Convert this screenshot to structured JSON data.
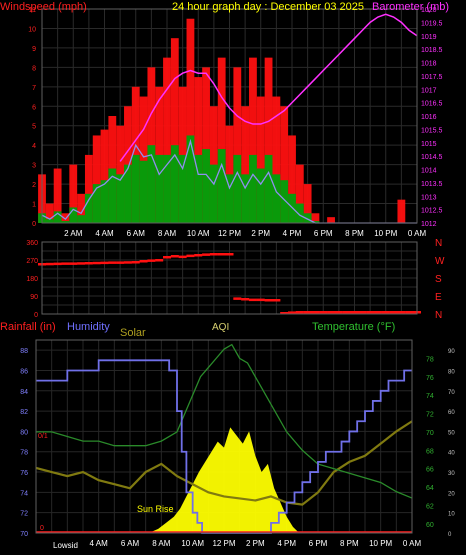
{
  "chart_data": [
    {
      "type": "line",
      "panel": "wind-barometer",
      "title": "24 hour graph day : December 03 2025",
      "ylabel": "Windspeed (mph)",
      "ylabel_right": "Barometer (mb)",
      "x_ticks": [
        "2 AM",
        "4 AM",
        "6 AM",
        "8 AM",
        "10 AM",
        "12 PM",
        "2 PM",
        "4 PM",
        "6 PM",
        "8 PM",
        "10 PM",
        "0 AM"
      ],
      "ylim": [
        0,
        11
      ],
      "y_ticks": [
        0,
        1,
        2,
        3,
        4,
        5,
        6,
        7,
        8,
        9,
        10,
        11
      ],
      "y2lim": [
        1012,
        1020
      ],
      "y2_ticks": [
        "1012",
        "1012.5",
        "1013",
        "1013.5",
        "1014",
        "1014.5",
        "1015",
        "1015.5",
        "1016",
        "1016.5",
        "1017",
        "1017.5",
        "1018",
        "1018.5",
        "1019",
        "1019.5",
        "1020"
      ],
      "grid": true,
      "series": [
        {
          "name": "Barometer (mb)",
          "axis": "right",
          "color": "#ff30ff",
          "x": [
            5,
            5.5,
            6,
            6.5,
            7,
            7.5,
            8,
            8.5,
            9,
            9.5,
            10,
            10.5,
            11,
            11.5,
            12,
            12.5,
            13,
            13.5,
            14,
            14.5,
            15,
            15.5,
            16,
            16.5,
            17,
            17.5,
            18,
            18.5,
            19,
            19.5,
            20,
            20.5,
            21,
            21.5,
            22,
            22.5,
            23,
            23.5,
            24
          ],
          "values": [
            1014.3,
            1014.7,
            1015.1,
            1015.5,
            1016.1,
            1016.6,
            1017.0,
            1017.4,
            1017.6,
            1017.7,
            1017.6,
            1017.6,
            1017.2,
            1016.7,
            1016.3,
            1016.0,
            1015.8,
            1015.7,
            1015.7,
            1015.8,
            1016.0,
            1016.2,
            1016.5,
            1016.8,
            1017.1,
            1017.4,
            1017.7,
            1018.0,
            1018.3,
            1018.6,
            1018.9,
            1019.2,
            1019.5,
            1019.7,
            1019.8,
            1019.7,
            1019.5,
            1019.2,
            1019.0
          ]
        },
        {
          "name": "Wind gust",
          "color": "#ff1010",
          "x": [
            0,
            0.5,
            1,
            1.5,
            2,
            2.5,
            3,
            3.5,
            4,
            4.5,
            5,
            5.5,
            6,
            6.5,
            7,
            7.5,
            8,
            8.5,
            9,
            9.5,
            10,
            10.5,
            11,
            11.5,
            12,
            12.5,
            13,
            13.5,
            14,
            14.5,
            15,
            15.5,
            16,
            16.5,
            17,
            17.5,
            18,
            18.5,
            19,
            19.5,
            20,
            20.5,
            21,
            21.5,
            22,
            22.5,
            23,
            23.5,
            24
          ],
          "values": [
            2.5,
            1,
            2.8,
            0.5,
            3,
            1.5,
            3.5,
            4.5,
            4.8,
            5.5,
            5,
            6,
            7,
            6.5,
            8,
            7,
            8.5,
            9.5,
            7,
            10.5,
            7.5,
            8,
            6,
            8.5,
            5,
            8,
            6,
            8.5,
            6.5,
            8.5,
            6.5,
            6,
            4.5,
            3,
            2,
            0.5,
            0,
            0.3,
            0,
            0,
            0,
            0,
            0,
            0,
            0,
            0,
            1.2,
            0,
            0
          ]
        },
        {
          "name": "Wind speed",
          "color": "#0a9a0a",
          "x": [
            0,
            0.5,
            1,
            1.5,
            2,
            2.5,
            3,
            3.5,
            4,
            4.5,
            5,
            5.5,
            6,
            6.5,
            7,
            7.5,
            8,
            8.5,
            9,
            9.5,
            10,
            10.5,
            11,
            11.5,
            12,
            12.5,
            13,
            13.5,
            14,
            14.5,
            15,
            15.5,
            16,
            16.5,
            17,
            17.5,
            18,
            18.5,
            19,
            19.5,
            20,
            20.5,
            21,
            21.5,
            22,
            22.5,
            23,
            23.5,
            24
          ],
          "values": [
            0.5,
            0.2,
            0.6,
            0.1,
            0.8,
            0.4,
            1.5,
            2,
            2.2,
            2.8,
            2.5,
            3,
            3.5,
            3.2,
            4,
            3.5,
            3.5,
            4,
            3.5,
            4.5,
            3.5,
            3.8,
            3,
            3.8,
            2.5,
            3.5,
            2.5,
            3.5,
            2.8,
            3.5,
            2.5,
            2.2,
            1.5,
            1,
            0.5,
            0.1,
            0,
            0,
            0,
            0,
            0,
            0,
            0,
            0,
            0,
            0,
            0,
            0,
            0
          ]
        },
        {
          "name": "Wind average",
          "color": "#8f8ff0",
          "x": [
            0,
            0.5,
            1,
            1.5,
            2,
            2.5,
            3,
            3.5,
            4,
            4.5,
            5,
            5.5,
            6,
            6.5,
            7,
            7.5,
            8,
            8.5,
            9,
            9.5,
            10,
            10.5,
            11,
            11.5,
            12,
            12.5,
            13,
            13.5,
            14,
            14.5,
            15,
            15.5,
            16,
            16.5,
            17,
            17.5,
            18,
            18.5,
            19,
            19.5,
            20,
            20.5,
            21,
            21.5,
            22,
            22.5,
            23,
            23.5,
            24
          ],
          "values": [
            0.4,
            0.2,
            0.5,
            0.2,
            0.7,
            0.5,
            1.2,
            1.8,
            2,
            2.4,
            2.2,
            2.8,
            4,
            3.4,
            3.5,
            2.5,
            3,
            3.5,
            2.8,
            4.2,
            2.5,
            2.5,
            2,
            3,
            1.8,
            2.6,
            1.8,
            2.5,
            2,
            2.6,
            1.6,
            1.2,
            0.8,
            0.4,
            0.2,
            0,
            0,
            0,
            0,
            0,
            0,
            0,
            0,
            0,
            0,
            0,
            0,
            0,
            0
          ]
        }
      ]
    },
    {
      "type": "scatter",
      "panel": "wind-direction",
      "ylim": [
        0,
        360
      ],
      "y_ticks": [
        "0",
        "45",
        "90",
        "135",
        "180",
        "225",
        "270",
        "315",
        "360"
      ],
      "compass_labels": [
        "N",
        "W",
        "S",
        "E",
        "N"
      ],
      "grid": true,
      "series": [
        {
          "name": "Wind direction",
          "color": "#ff1010",
          "x": [
            0,
            0.5,
            1,
            1.5,
            2,
            2.5,
            3,
            3.5,
            4,
            4.5,
            5,
            5.5,
            6,
            6.5,
            7,
            7.5,
            8,
            8.5,
            9,
            9.5,
            10,
            10.5,
            11,
            11.5,
            12,
            12.5,
            13,
            13.5,
            14,
            14.5,
            15,
            15.5,
            16,
            16.5,
            17,
            17.5,
            18,
            18.5,
            19,
            19.5,
            20,
            20.5,
            21,
            21.5,
            22,
            22.5,
            23,
            23.5,
            24
          ],
          "values": [
            250,
            251,
            252,
            253,
            253,
            254,
            255,
            256,
            257,
            258,
            258,
            259,
            260,
            265,
            268,
            270,
            285,
            290,
            287,
            292,
            295,
            298,
            300,
            300,
            300,
            78,
            75,
            72,
            72,
            70,
            70,
            5,
            8,
            10,
            10,
            10,
            10,
            10,
            10,
            10,
            10,
            10,
            10,
            10,
            10,
            10,
            10,
            10,
            10
          ]
        }
      ]
    },
    {
      "type": "line",
      "panel": "rain-humidity-solar-temperature",
      "legend": [
        "Rainfall (in)",
        "Humidity",
        "Solar",
        "AQI",
        "Temperature (°F)"
      ],
      "x_ticks": [
        "4 AM",
        "6 AM",
        "8 AM",
        "10 AM",
        "12 PM",
        "2 PM",
        "4 PM",
        "6 PM",
        "8 PM",
        "10 PM",
        "0 AM"
      ],
      "first_x_label": "Lowsid",
      "annotation": "Sun Rise",
      "rain_marks": [
        "0/1",
        "0"
      ],
      "ylim": [
        70,
        89
      ],
      "y_ticks": [
        "70",
        "72",
        "74",
        "76",
        "78",
        "80",
        "82",
        "84",
        "86",
        "88"
      ],
      "y2lim": [
        59,
        80
      ],
      "y2_ticks": [
        "60",
        "62",
        "64",
        "66",
        "68",
        "70",
        "72",
        "74",
        "76",
        "78"
      ],
      "y3_ticks": [
        "0",
        "10",
        "20",
        "30",
        "40",
        "50",
        "60",
        "70",
        "80",
        "90"
      ],
      "grid": true,
      "series": [
        {
          "name": "Solar",
          "color": "#ffff00",
          "x": [
            7.2,
            7.8,
            8.3,
            8.8,
            9.2,
            9.6,
            10,
            10.4,
            10.8,
            11.2,
            11.6,
            12,
            12.4,
            12.8,
            13.2,
            13.6,
            14,
            14.4,
            14.8,
            15.2,
            15.6,
            16,
            16.4,
            16.8
          ],
          "values": [
            0,
            2,
            5,
            8,
            12,
            18,
            24,
            30,
            35,
            40,
            45,
            42,
            52,
            48,
            44,
            50,
            38,
            30,
            34,
            22,
            15,
            8,
            3,
            0
          ]
        },
        {
          "name": "Humidity",
          "color": "#7070e8",
          "x": [
            0,
            1,
            2,
            3,
            4,
            5,
            6,
            7,
            8,
            8.5,
            9,
            9.3,
            9.6,
            10,
            10.3,
            10.6,
            11,
            11.5,
            12,
            13,
            14,
            14.5,
            15,
            15.5,
            16,
            16.5,
            17,
            17.5,
            18,
            18.5,
            19,
            19.5,
            20,
            20.5,
            21,
            21.5,
            22,
            22.5,
            23,
            23.5,
            24
          ],
          "values": [
            85,
            85,
            86,
            86,
            87,
            87,
            87,
            87,
            87,
            86,
            82,
            78,
            74,
            72,
            71,
            70,
            70,
            70,
            70,
            70,
            70,
            70,
            71,
            72,
            73,
            74,
            75,
            76,
            77,
            78,
            78,
            79,
            80,
            81,
            82,
            83,
            84,
            85,
            85,
            86,
            86
          ]
        },
        {
          "name": "Temperature (°F)",
          "color": "#2a8a2a",
          "x": [
            0,
            1,
            2,
            3,
            4,
            5,
            6,
            7,
            8,
            9,
            9.5,
            10,
            10.5,
            11,
            11.5,
            12,
            12.5,
            13,
            13.5,
            14,
            15,
            16,
            17,
            18,
            19,
            20,
            21,
            22,
            23,
            24
          ],
          "values": [
            70,
            70,
            69.5,
            69,
            69,
            68.5,
            68.5,
            68.5,
            69,
            70,
            72,
            74,
            76,
            77,
            78,
            79,
            79.5,
            78,
            77.5,
            76,
            73,
            70,
            68,
            66.5,
            66,
            65.5,
            65,
            64.5,
            63.5,
            62.8
          ]
        },
        {
          "name": "AQI",
          "color": "#807a10",
          "x": [
            0,
            1,
            2,
            3,
            4,
            5,
            6,
            7,
            8,
            9,
            10,
            11,
            12,
            13,
            14,
            15,
            16,
            17,
            18,
            19,
            20,
            21,
            22,
            23,
            24
          ],
          "values": [
            32,
            30,
            28,
            30,
            26,
            24,
            22,
            30,
            34,
            28,
            24,
            20,
            18,
            17,
            16,
            18,
            15,
            14,
            20,
            30,
            35,
            38,
            44,
            50,
            55
          ]
        }
      ]
    }
  ]
}
